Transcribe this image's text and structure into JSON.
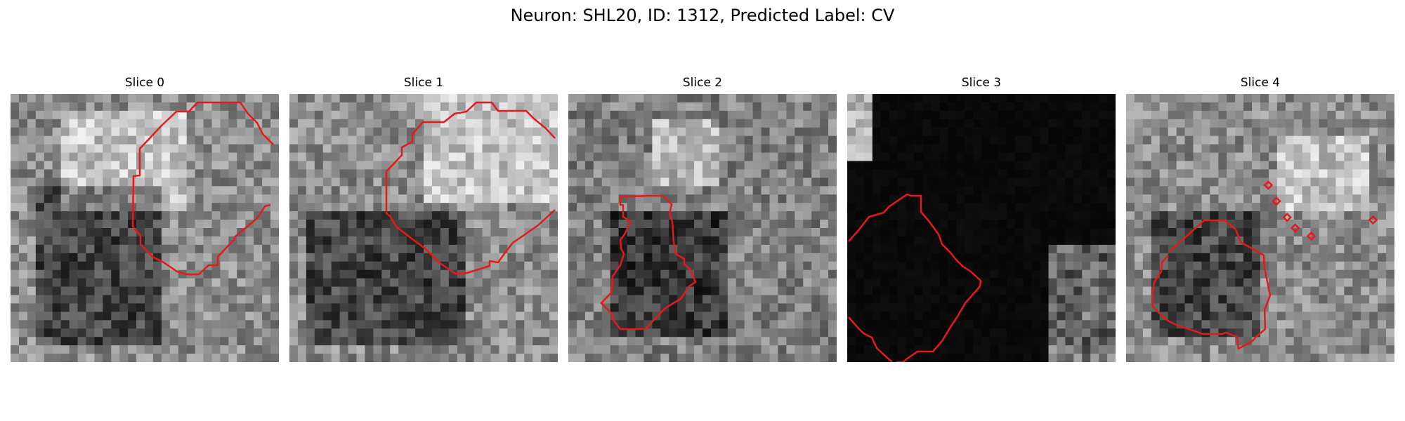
{
  "figure": {
    "suptitle": "Neuron: SHL20, ID: 1312, Predicted Label: CV"
  },
  "colors": {
    "contour": "#e41a1c",
    "background": "#ffffff"
  },
  "panels": [
    {
      "title": "Slice 0",
      "description": "grayscale pixel texture with red ROI contour",
      "base": 0.55,
      "dark_region": [
        0.1,
        0.35,
        0.55,
        0.95
      ],
      "bright_region": [
        0.2,
        0.05,
        0.65,
        0.45
      ],
      "markers": []
    },
    {
      "title": "Slice 1",
      "description": "grayscale pixel texture with red ROI contour",
      "base": 0.55,
      "dark_region": [
        0.05,
        0.45,
        0.65,
        0.95
      ],
      "bright_region": [
        0.5,
        0.0,
        1.0,
        0.4
      ],
      "markers": []
    },
    {
      "title": "Slice 2",
      "description": "grayscale pixel texture with red ROI contour",
      "base": 0.5,
      "dark_region": [
        0.15,
        0.45,
        0.6,
        0.9
      ],
      "bright_region": [
        0.3,
        0.1,
        0.55,
        0.35
      ],
      "markers": []
    },
    {
      "title": "Slice 3",
      "description": "near-black image with small gray border areas and red ROI contour",
      "base": 0.05,
      "dark_region": [
        0,
        0,
        1,
        1
      ],
      "bright_region": [
        0.75,
        0.55,
        1.0,
        1.0
      ],
      "markers": []
    },
    {
      "title": "Slice 4",
      "description": "grayscale pixel texture with red ROI contour and small diamond markers",
      "base": 0.55,
      "dark_region": [
        0.1,
        0.45,
        0.5,
        0.9
      ],
      "bright_region": [
        0.55,
        0.15,
        0.9,
        0.45
      ],
      "markers": [
        [
          0.53,
          0.34
        ],
        [
          0.56,
          0.4
        ],
        [
          0.6,
          0.46
        ],
        [
          0.63,
          0.5
        ],
        [
          0.69,
          0.53
        ],
        [
          0.92,
          0.47
        ]
      ]
    }
  ]
}
